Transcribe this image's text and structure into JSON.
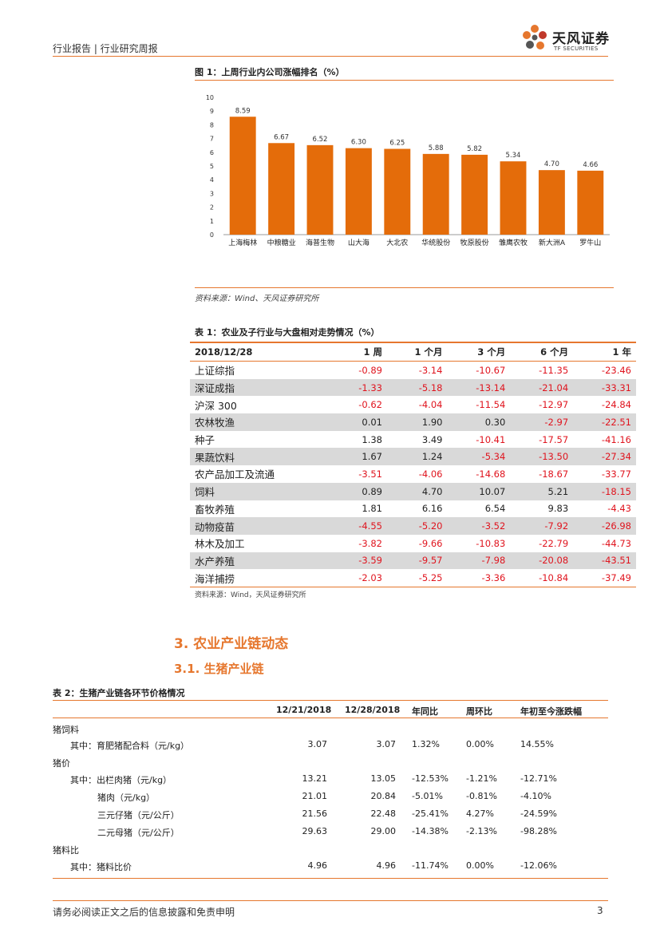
{
  "header": {
    "left_text": "行业报告 | 行业研究周报",
    "logo_cn": "天风证券",
    "logo_en": "TF SECURITIES"
  },
  "figure1": {
    "title": "图 1：上周行业内公司涨幅排名（%）",
    "source": "资料来源：Wind、天风证券研究所"
  },
  "chart_data": {
    "type": "bar",
    "categories": [
      "上海梅林",
      "中粮糖业",
      "海普生物",
      "山大海",
      "大北农",
      "华统股份",
      "牧原股份",
      "雏鹰农牧",
      "新大洲A",
      "罗牛山"
    ],
    "values": [
      8.59,
      6.67,
      6.52,
      6.3,
      6.25,
      5.88,
      5.82,
      5.34,
      4.7,
      4.66
    ],
    "data_labels": [
      "8.59",
      "6.67",
      "6.52",
      "6.30",
      "6.25",
      "5.88",
      "5.82",
      "5.34",
      "4.70",
      "4.66"
    ],
    "y_ticks": [
      "0",
      "1",
      "2",
      "3",
      "4",
      "5",
      "6",
      "7",
      "8",
      "9",
      "10"
    ],
    "ylim": [
      0,
      10
    ],
    "grid": false,
    "bar_color": "#e46c0a"
  },
  "table1": {
    "title": "表 1：农业及子行业与大盘相对走势情况（%）",
    "headers": [
      "2018/12/28",
      "1 周",
      "1 个月",
      "3 个月",
      "6 个月",
      "1 年"
    ],
    "rows": [
      {
        "name": "上证综指",
        "values": [
          "-0.89",
          "-3.14",
          "-10.67",
          "-11.35",
          "-23.46"
        ]
      },
      {
        "name": "深证成指",
        "values": [
          "-1.33",
          "-5.18",
          "-13.14",
          "-21.04",
          "-33.31"
        ]
      },
      {
        "name": "沪深 300",
        "values": [
          "-0.62",
          "-4.04",
          "-11.54",
          "-12.97",
          "-24.84"
        ]
      },
      {
        "name": "农林牧渔",
        "values": [
          "0.01",
          "1.90",
          "0.30",
          "-2.97",
          "-22.51"
        ]
      },
      {
        "name": "种子",
        "values": [
          "1.38",
          "3.49",
          "-10.41",
          "-17.57",
          "-41.16"
        ]
      },
      {
        "name": "果蔬饮料",
        "values": [
          "1.67",
          "1.24",
          "-5.34",
          "-13.50",
          "-27.34"
        ]
      },
      {
        "name": "农产品加工及流通",
        "values": [
          "-3.51",
          "-4.06",
          "-14.68",
          "-18.67",
          "-33.77"
        ]
      },
      {
        "name": "饲料",
        "values": [
          "0.89",
          "4.70",
          "10.07",
          "5.21",
          "-18.15"
        ]
      },
      {
        "name": "畜牧养殖",
        "values": [
          "1.81",
          "6.16",
          "6.54",
          "9.83",
          "-4.43"
        ]
      },
      {
        "name": "动物疫苗",
        "values": [
          "-4.55",
          "-5.20",
          "-3.52",
          "-7.92",
          "-26.98"
        ]
      },
      {
        "name": "林木及加工",
        "values": [
          "-3.82",
          "-9.66",
          "-10.83",
          "-22.79",
          "-44.73"
        ]
      },
      {
        "name": "水产养殖",
        "values": [
          "-3.59",
          "-9.57",
          "-7.98",
          "-20.08",
          "-43.51"
        ]
      },
      {
        "name": "海洋捕捞",
        "values": [
          "-2.03",
          "-5.25",
          "-3.36",
          "-10.84",
          "-37.49"
        ]
      }
    ],
    "source": "资料来源：Wind，天风证券研究所"
  },
  "section3": {
    "title": "3. 农业产业链动态",
    "sub_title": "3.1. 生猪产业链"
  },
  "table2": {
    "title": "表 2：生猪产业链各环节价格情况",
    "headers": [
      "12/21/2018",
      "12/28/2018",
      "年同比",
      "周环比",
      "年初至今涨跌幅"
    ],
    "rows": [
      {
        "label": "猪饲料",
        "values": []
      },
      {
        "label": "其中：育肥猪配合料（元/kg）",
        "values": [
          "3.07",
          "3.07",
          "1.32%",
          "0.00%",
          "14.55%"
        ]
      },
      {
        "label": "猪价",
        "values": []
      },
      {
        "label": "其中：出栏肉猪（元/kg）",
        "values": [
          "13.21",
          "13.05",
          "-12.53%",
          "-1.21%",
          "-12.71%"
        ]
      },
      {
        "label": "猪肉（元/kg）",
        "values": [
          "21.01",
          "20.84",
          "-5.01%",
          "-0.81%",
          "-4.10%"
        ]
      },
      {
        "label": "三元仔猪（元/公斤）",
        "values": [
          "21.56",
          "22.48",
          "-25.41%",
          "4.27%",
          "-24.59%"
        ]
      },
      {
        "label": "二元母猪（元/公斤）",
        "values": [
          "29.63",
          "29.00",
          "-14.38%",
          "-2.13%",
          "-98.28%"
        ]
      },
      {
        "label": "猪料比",
        "values": []
      },
      {
        "label": "其中：猪料比价",
        "values": [
          "4.96",
          "4.96",
          "-11.74%",
          "0.00%",
          "-12.06%"
        ]
      }
    ]
  },
  "footer": {
    "disclaimer": "请务必阅读正文之后的信息披露和免责申明",
    "page_number": "3"
  }
}
